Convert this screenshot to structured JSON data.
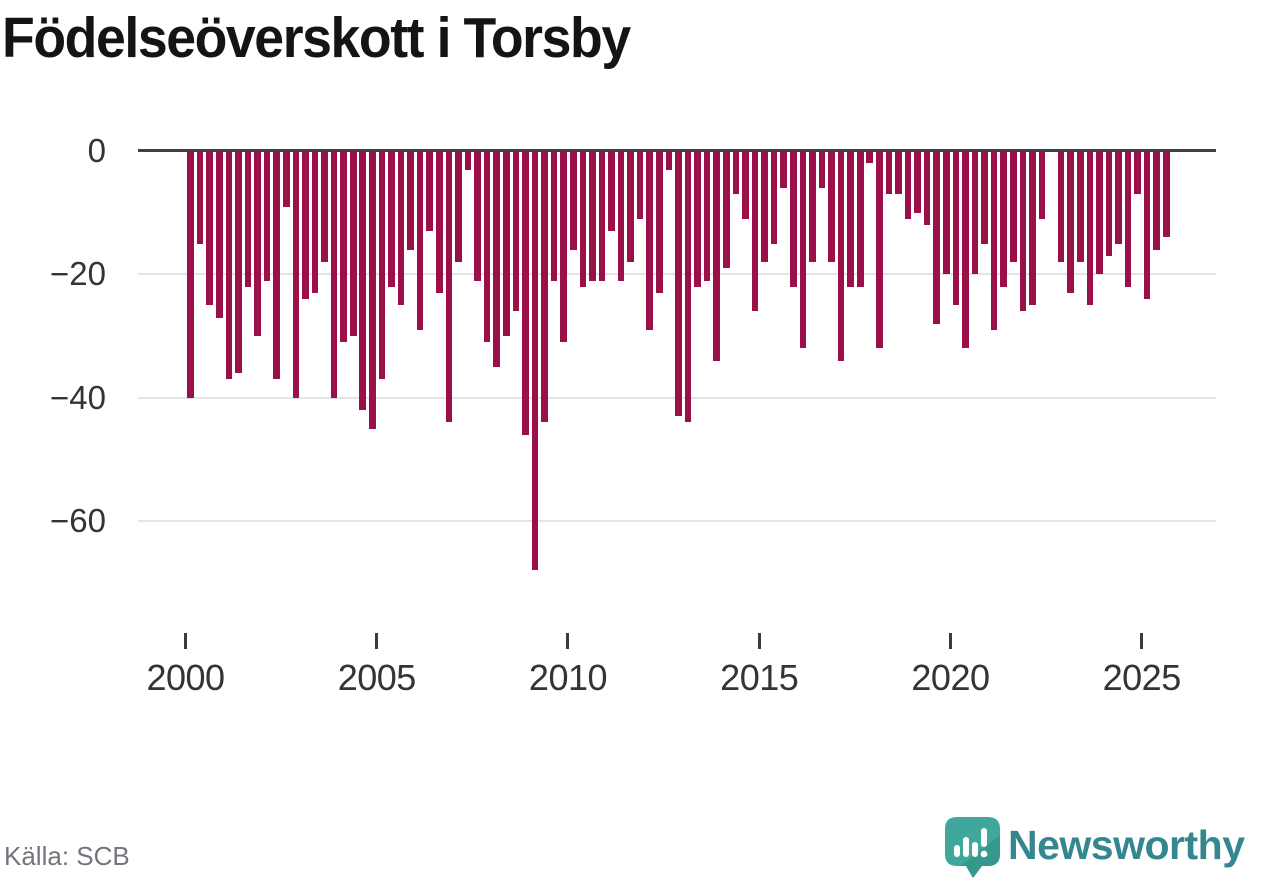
{
  "title": "Födelseöverskott i Torsby",
  "source": "Källa: SCB",
  "branding": {
    "wordmark": "Newsworthy",
    "logo_icon": "speech-bubble-bar-chart",
    "wordmark_color": "#35878f",
    "bubble_color": "#3fa79c",
    "bubble_shade_color": "#2c8c84"
  },
  "colors": {
    "bar": "#9b1048",
    "axis_line": "#404046",
    "gridline": "#e4e4e6",
    "tick_label": "#333338",
    "title_text": "#141414",
    "source_text": "#75757d"
  },
  "chart_data": {
    "type": "bar",
    "title": "Födelseöverskott i Torsby",
    "xlabel": "",
    "ylabel": "",
    "frequency": "quarterly",
    "start_period": "2000 Q1",
    "end_period": "2025 Q3",
    "x_tick_labels": [
      "2000",
      "2005",
      "2010",
      "2015",
      "2020",
      "2025"
    ],
    "y_ticks": [
      0,
      -20,
      -40,
      -60
    ],
    "y_tick_labels": [
      "0",
      "−20",
      "−40",
      "−60"
    ],
    "ylim": [
      -70,
      0
    ],
    "grid": "horizontal",
    "legend": "none",
    "bar_color": "#9b1048",
    "values": [
      -40,
      -15,
      -25,
      -27,
      -37,
      -36,
      -22,
      -30,
      -21,
      -37,
      -9,
      -40,
      -24,
      -23,
      -18,
      -40,
      -31,
      -30,
      -42,
      -45,
      -37,
      -22,
      -25,
      -16,
      -29,
      -13,
      -23,
      -44,
      -18,
      -3,
      -21,
      -31,
      -35,
      -30,
      -26,
      -46,
      -68,
      -44,
      -21,
      -31,
      -16,
      -22,
      -21,
      -21,
      -13,
      -21,
      -18,
      -11,
      -29,
      -23,
      -3,
      -43,
      -44,
      -22,
      -21,
      -34,
      -19,
      -7,
      -11,
      -26,
      -18,
      -15,
      -6,
      -22,
      -32,
      -18,
      -6,
      -18,
      -34,
      -22,
      -22,
      -2,
      -32,
      -7,
      -7,
      -11,
      -10,
      -12,
      -28,
      -20,
      -25,
      -32,
      -20,
      -15,
      -29,
      -22,
      -18,
      -26,
      -25,
      -11,
      0,
      -18,
      -23,
      -18,
      -25,
      -20,
      -17,
      -15,
      -22,
      -7,
      -24,
      -16,
      -14
    ]
  }
}
